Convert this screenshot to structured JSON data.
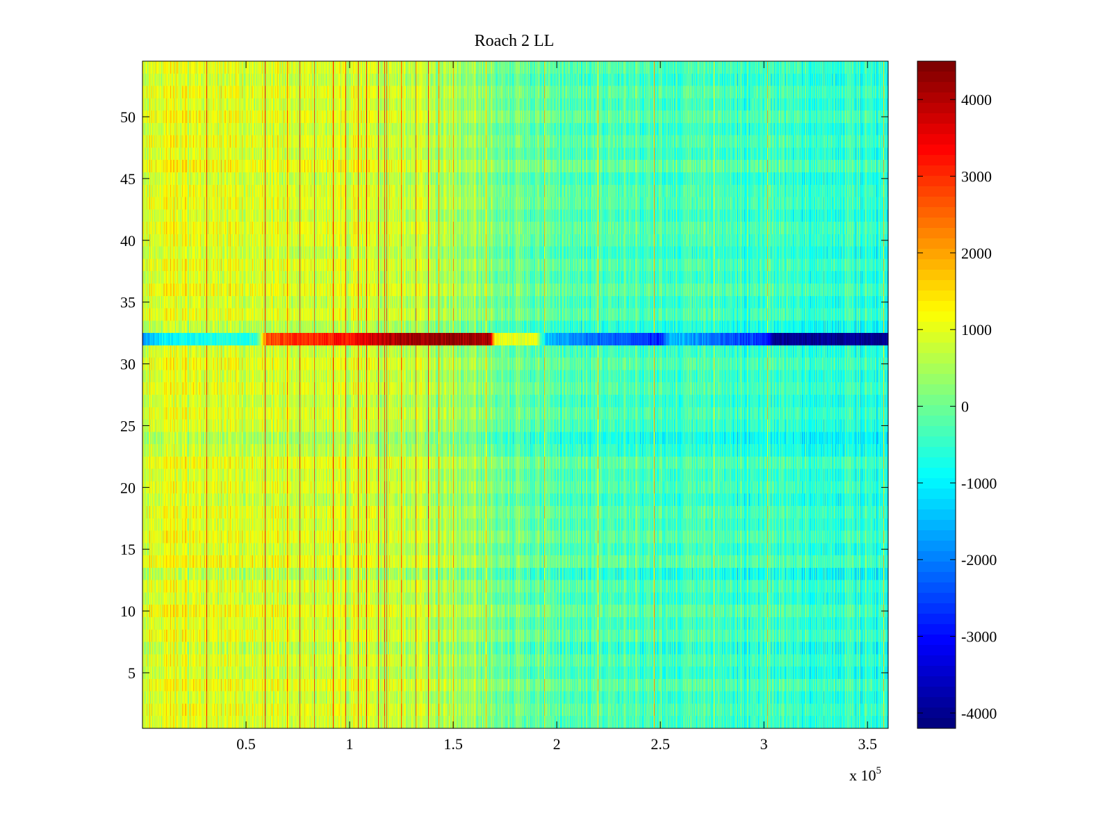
{
  "chart_data": {
    "type": "heatmap",
    "title": "Roach 2 LL",
    "xlabel": "",
    "ylabel": "",
    "x_multiplier_label": "x 10",
    "x_multiplier_exponent": "5",
    "xlim": [
      0,
      360000
    ],
    "ylim": [
      0.5,
      54.5
    ],
    "x_ticks": [
      0.5,
      1,
      1.5,
      2,
      2.5,
      3,
      3.5
    ],
    "x_tick_labels": [
      "0.5",
      "1",
      "1.5",
      "2",
      "2.5",
      "3",
      "3.5"
    ],
    "y_ticks": [
      5,
      10,
      15,
      20,
      25,
      30,
      35,
      40,
      45,
      50
    ],
    "y_tick_labels": [
      "5",
      "10",
      "15",
      "20",
      "25",
      "30",
      "35",
      "40",
      "45",
      "50"
    ],
    "rows": 54,
    "colormap": "jet",
    "colorbar": {
      "clim": [
        -4200,
        4500
      ],
      "ticks": [
        4000,
        3000,
        2000,
        1000,
        0,
        -1000,
        -2000,
        -3000,
        -4000
      ],
      "tick_labels": [
        "4000",
        "3000",
        "2000",
        "1000",
        "0",
        "-1000",
        "-2000",
        "-3000",
        "-4000"
      ]
    },
    "background_trend": {
      "x": [
        0,
        20000,
        50000,
        80000,
        100000,
        120000,
        140000,
        160000,
        170000,
        190000,
        220000,
        260000,
        300000,
        330000,
        360000
      ],
      "value": [
        1000,
        1050,
        900,
        850,
        850,
        800,
        550,
        400,
        50,
        -150,
        -250,
        -350,
        -450,
        -550,
        -650
      ]
    },
    "hot_lines_x": [
      31000,
      59000,
      70000,
      76000,
      83000,
      92000,
      98000,
      104000,
      108000,
      114000,
      117000,
      118000,
      125000,
      132000,
      138000,
      143000,
      150000,
      166000,
      194000,
      220000,
      247000,
      276000,
      302000,
      358000
    ],
    "anomaly_row": {
      "row": 32,
      "x": [
        0,
        10000,
        55000,
        60000,
        100000,
        110000,
        120000,
        150000,
        168000,
        170000,
        190000,
        195000,
        220000,
        250000,
        255000,
        280000,
        302000,
        305000,
        360000
      ],
      "value": [
        -1800,
        -1000,
        -600,
        2800,
        3300,
        3700,
        4100,
        4300,
        4200,
        1200,
        900,
        -1500,
        -2200,
        -2800,
        -1400,
        -2300,
        -2800,
        -4100,
        -4100
      ]
    },
    "row_offsets": [
      0,
      120,
      -80,
      200,
      -150,
      60,
      -200,
      150,
      -60,
      220,
      -120,
      80,
      -300,
      220,
      -80,
      180,
      -40,
      120,
      -160,
      90,
      -60,
      160,
      -220,
      -420,
      -80,
      60,
      -140,
      100,
      -60,
      140,
      -80,
      0,
      -300,
      80,
      -100,
      180,
      -60,
      120,
      -140,
      60,
      160,
      -80,
      100,
      80,
      -120,
      260,
      -60,
      140,
      -100,
      200,
      -40,
      140,
      -120,
      60
    ]
  }
}
